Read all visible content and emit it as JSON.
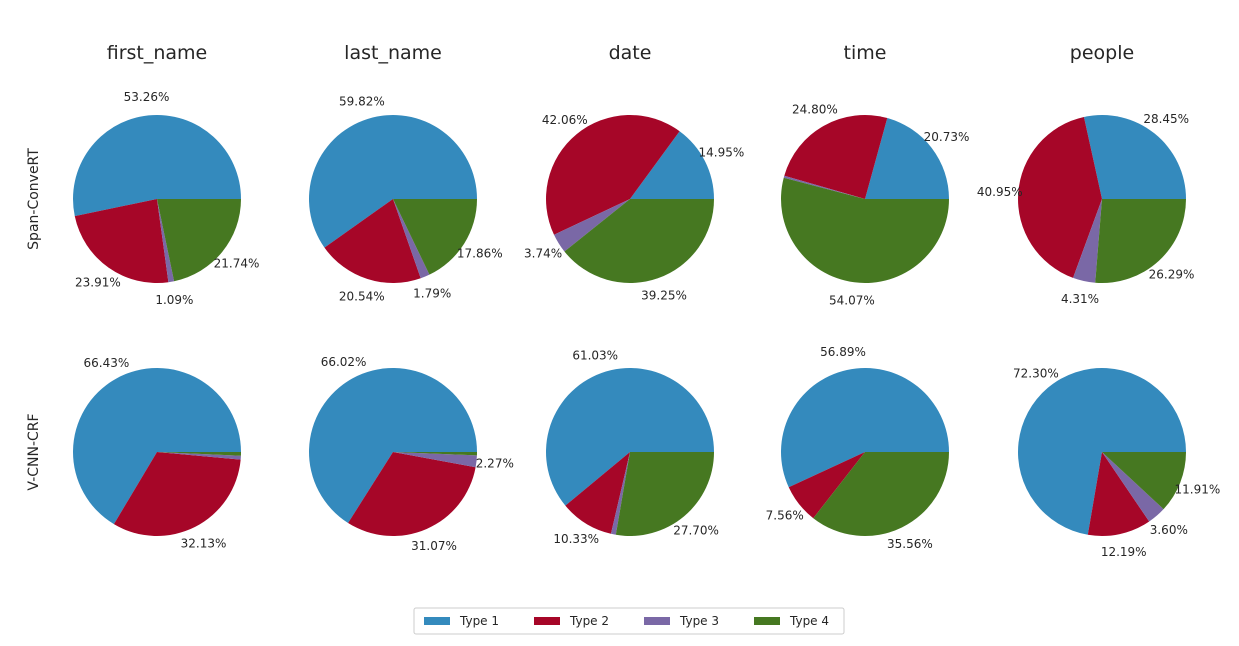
{
  "chart_data": {
    "type": "pie",
    "columns": [
      "first_name",
      "last_name",
      "date",
      "time",
      "people"
    ],
    "rows": [
      "Span-ConveRT",
      "V-CNN-CRF"
    ],
    "legend": {
      "placement": "bottom-center",
      "entries": [
        {
          "label": "Type 1",
          "color": "#348abd"
        },
        {
          "label": "Type 2",
          "color": "#a60628"
        },
        {
          "label": "Type 3",
          "color": "#7a68a6"
        },
        {
          "label": "Type 4",
          "color": "#467821"
        }
      ]
    },
    "pies": [
      {
        "row": "Span-ConveRT",
        "column": "first_name",
        "values": [
          53.26,
          23.91,
          1.09,
          21.74
        ],
        "labels": [
          "53.26%",
          "23.91%",
          "1.09%",
          "21.74%"
        ]
      },
      {
        "row": "Span-ConveRT",
        "column": "last_name",
        "values": [
          59.82,
          20.54,
          1.79,
          17.86
        ],
        "labels": [
          "59.82%",
          "20.54%",
          "1.79%",
          "17.86%"
        ]
      },
      {
        "row": "Span-ConveRT",
        "column": "date",
        "values": [
          14.95,
          42.06,
          3.74,
          39.25
        ],
        "labels": [
          "14.95%",
          "42.06%",
          "3.74%",
          "39.25%"
        ]
      },
      {
        "row": "Span-ConveRT",
        "column": "time",
        "values": [
          20.73,
          24.8,
          0.4,
          54.07
        ],
        "labels": [
          "20.73%",
          "24.80%",
          "",
          "54.07%"
        ]
      },
      {
        "row": "Span-ConveRT",
        "column": "people",
        "values": [
          28.45,
          40.95,
          4.31,
          26.29
        ],
        "labels": [
          "28.45%",
          "40.95%",
          "4.31%",
          "26.29%"
        ]
      },
      {
        "row": "V-CNN-CRF",
        "column": "first_name",
        "values": [
          66.43,
          32.13,
          0.74,
          0.7
        ],
        "labels": [
          "66.43%",
          "32.13%",
          "",
          ""
        ]
      },
      {
        "row": "V-CNN-CRF",
        "column": "last_name",
        "values": [
          66.02,
          31.07,
          2.27,
          0.64
        ],
        "labels": [
          "66.02%",
          "31.07%",
          "2.27%",
          ""
        ]
      },
      {
        "row": "V-CNN-CRF",
        "column": "date",
        "values": [
          61.03,
          10.33,
          0.94,
          27.7
        ],
        "labels": [
          "61.03%",
          "10.33%",
          "",
          "27.70%"
        ]
      },
      {
        "row": "V-CNN-CRF",
        "column": "time",
        "values": [
          56.89,
          7.56,
          0.0,
          35.56
        ],
        "labels": [
          "56.89%",
          "7.56%",
          "",
          "35.56%"
        ]
      },
      {
        "row": "V-CNN-CRF",
        "column": "people",
        "values": [
          72.3,
          12.19,
          3.6,
          11.91
        ],
        "labels": [
          "72.30%",
          "12.19%",
          "3.60%",
          "11.91%"
        ]
      }
    ]
  }
}
